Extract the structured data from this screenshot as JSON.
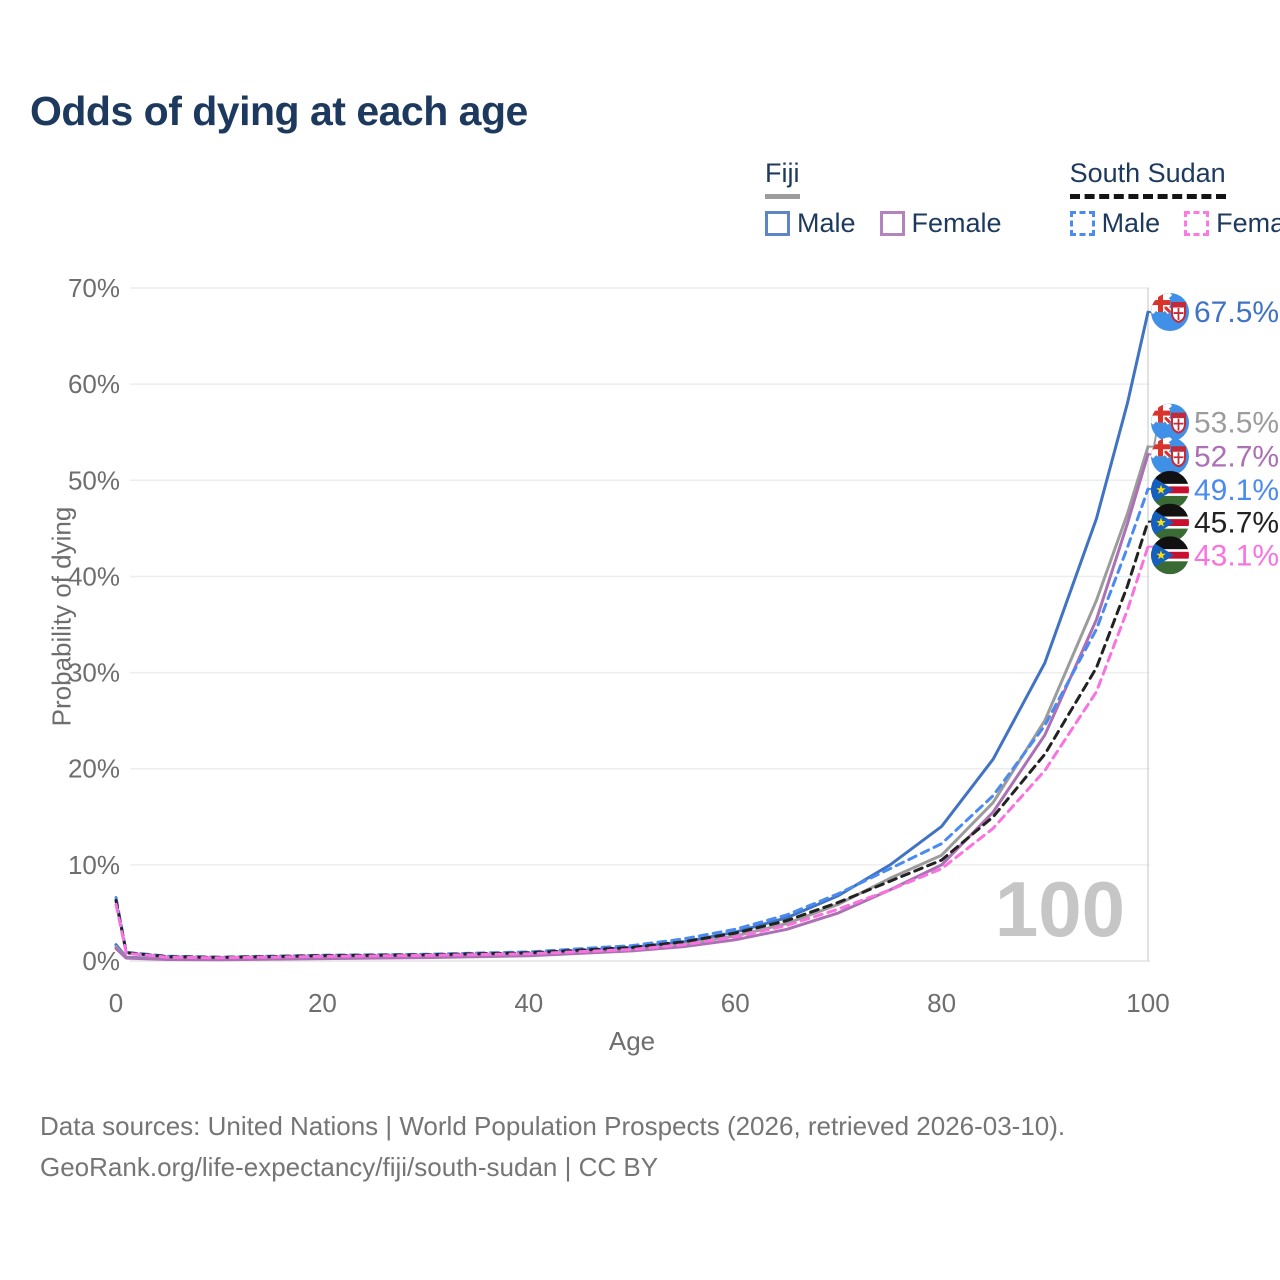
{
  "page": {
    "title": "Odds of dying at each age",
    "hover_age_label": "100"
  },
  "legend": {
    "groups": [
      {
        "name": "Fiji",
        "line_style": "solid",
        "underline_color": "#9c9c9c",
        "items": [
          {
            "label": "Male",
            "color": "#5e86c6",
            "dashed": false
          },
          {
            "label": "Female",
            "color": "#b283bd",
            "dashed": false
          }
        ]
      },
      {
        "name": "South Sudan",
        "line_style": "dashed",
        "underline_color": "#141414",
        "items": [
          {
            "label": "Male",
            "color": "#4b8bf0",
            "dashed": true
          },
          {
            "label": "Female",
            "color": "#f97ae3",
            "dashed": true
          }
        ]
      }
    ]
  },
  "footer": {
    "line1": "Data sources: United Nations | World Population Prospects (2026, retrieved 2026-03-10).",
    "line2": "GeoRank.org/life-expectancy/fiji/south-sudan | CC BY"
  },
  "chart_data": {
    "type": "line",
    "title": "Odds of dying at each age",
    "xlabel": "Age",
    "ylabel": "Probability of dying",
    "xlim": [
      0,
      100
    ],
    "ylim": [
      0,
      70
    ],
    "xticks": [
      0,
      20,
      40,
      60,
      80,
      100
    ],
    "yticks": [
      0,
      10,
      20,
      30,
      40,
      50,
      60,
      70
    ],
    "ytick_suffix": "%",
    "grid": "horizontal",
    "hover_age": 100,
    "ages": [
      0,
      1,
      5,
      10,
      20,
      30,
      40,
      50,
      55,
      60,
      65,
      70,
      75,
      80,
      85,
      90,
      95,
      98,
      100
    ],
    "series": [
      {
        "name": "Fiji Male",
        "country": "fiji",
        "color": "#4173c4",
        "dashed": false,
        "end_label": "67.5%",
        "end_value": 67.5,
        "label_y_pct": 67.5,
        "values": [
          1.7,
          0.4,
          0.25,
          0.2,
          0.4,
          0.5,
          0.75,
          1.4,
          2.0,
          3.0,
          4.5,
          6.8,
          10.0,
          14.0,
          21.0,
          31.0,
          46.0,
          58.0,
          67.5
        ]
      },
      {
        "name": "Fiji Both sexes",
        "country": "fiji",
        "color": "#9c9c9c",
        "dashed": false,
        "end_label": "53.5%",
        "end_value": 53.5,
        "label_y_pct": 56.0,
        "values": [
          1.5,
          0.35,
          0.2,
          0.16,
          0.32,
          0.43,
          0.65,
          1.2,
          1.75,
          2.6,
          3.9,
          5.9,
          8.6,
          11.0,
          16.5,
          25.0,
          37.5,
          46.5,
          53.5
        ]
      },
      {
        "name": "Fiji Female",
        "country": "fiji",
        "color": "#ac70b4",
        "dashed": false,
        "end_label": "52.7%",
        "end_value": 52.7,
        "label_y_pct": 52.5,
        "values": [
          1.3,
          0.3,
          0.16,
          0.13,
          0.25,
          0.35,
          0.55,
          1.05,
          1.5,
          2.2,
          3.3,
          5.0,
          7.4,
          10.0,
          15.5,
          23.5,
          35.5,
          45.5,
          52.7
        ]
      },
      {
        "name": "South Sudan Male",
        "country": "south_sudan",
        "color": "#4b8bf0",
        "dashed": true,
        "end_label": "49.1%",
        "end_value": 49.1,
        "label_y_pct": 49.0,
        "values": [
          6.6,
          0.9,
          0.5,
          0.4,
          0.6,
          0.7,
          0.95,
          1.6,
          2.3,
          3.3,
          4.8,
          7.0,
          9.6,
          12.2,
          17.2,
          24.5,
          34.5,
          43.0,
          49.1
        ]
      },
      {
        "name": "South Sudan Both sexes",
        "country": "south_sudan",
        "color": "#222222",
        "dashed": true,
        "end_label": "45.7%",
        "end_value": 45.7,
        "label_y_pct": 45.6,
        "values": [
          6.3,
          0.85,
          0.45,
          0.37,
          0.55,
          0.65,
          0.85,
          1.4,
          2.0,
          2.9,
          4.2,
          6.1,
          8.3,
          10.5,
          15.0,
          21.5,
          30.5,
          39.0,
          45.7
        ]
      },
      {
        "name": "South Sudan Female",
        "country": "south_sudan",
        "color": "#f973e0",
        "dashed": true,
        "end_label": "43.1%",
        "end_value": 43.1,
        "label_y_pct": 42.2,
        "values": [
          5.9,
          0.8,
          0.4,
          0.33,
          0.48,
          0.58,
          0.75,
          1.2,
          1.7,
          2.5,
          3.7,
          5.4,
          7.4,
          9.6,
          13.8,
          19.8,
          28.0,
          36.5,
          43.1
        ]
      }
    ]
  }
}
